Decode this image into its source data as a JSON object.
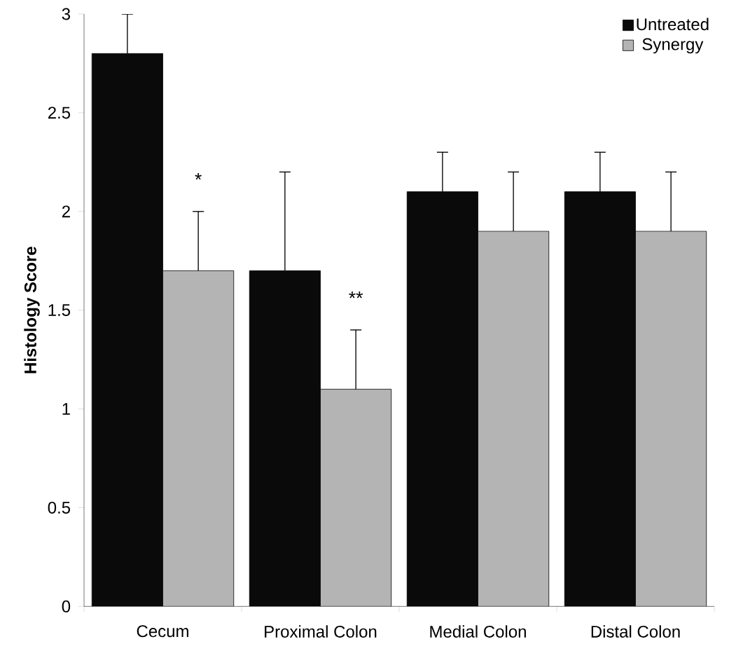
{
  "chart_data": {
    "type": "bar",
    "ylabel": "Histology Score",
    "categories": [
      "Cecum",
      "Proximal Colon",
      "Medial Colon",
      "Distal Colon"
    ],
    "series": [
      {
        "name": "Untreated",
        "color": "#0a0a0a",
        "values": [
          2.8,
          1.7,
          2.1,
          2.1
        ],
        "errors": [
          [
            2.8,
            3.0
          ],
          [
            1.7,
            2.2
          ],
          [
            2.1,
            2.3
          ],
          [
            2.1,
            2.3
          ]
        ]
      },
      {
        "name": "Synergy",
        "color": "#b4b4b4",
        "values": [
          1.7,
          1.1,
          1.9,
          1.9
        ],
        "errors": [
          [
            1.7,
            2.0
          ],
          [
            1.1,
            1.4
          ],
          [
            1.9,
            2.2
          ],
          [
            1.9,
            2.2
          ]
        ]
      }
    ],
    "annotations": [
      {
        "text": "*",
        "x": "Cecum",
        "y": 2.1
      },
      {
        "text": "**",
        "x": "Proximal Colon",
        "y": 1.5
      }
    ],
    "ylim": [
      0,
      3
    ],
    "yticks": [
      0,
      0.5,
      1,
      1.5,
      2,
      2.5,
      3
    ],
    "grid": false,
    "legend": "top right"
  }
}
